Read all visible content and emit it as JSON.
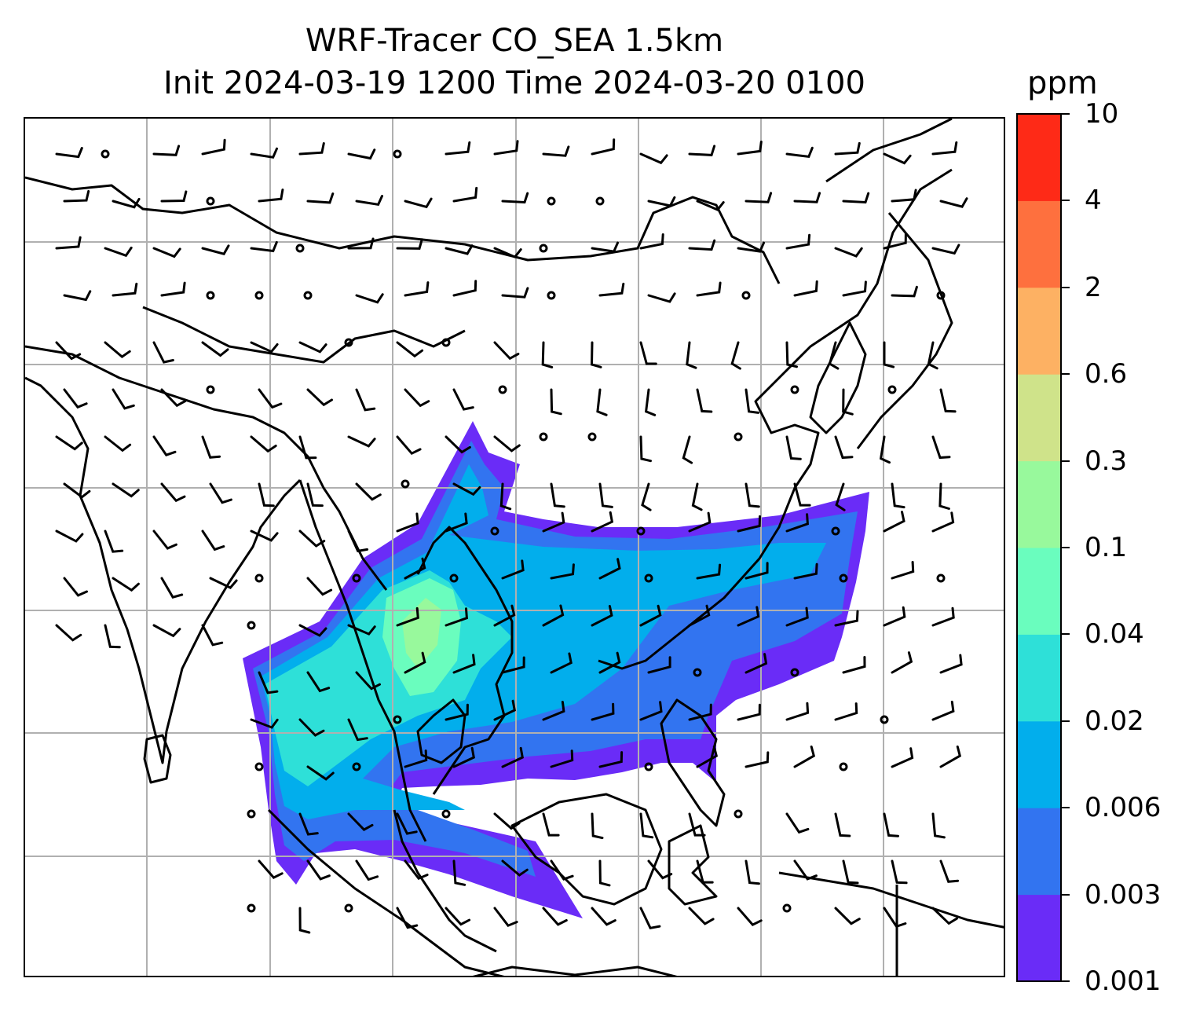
{
  "header": {
    "title_line1": "WRF-Tracer CO_SEA 1.5km",
    "title_line2": "Init 2024-03-19 1200 Time 2024-03-20 0100"
  },
  "colorbar": {
    "unit": "ppm",
    "levels": [
      "0.001",
      "0.003",
      "0.006",
      "0.02",
      "0.04",
      "0.1",
      "0.3",
      "0.6",
      "2",
      "4",
      "10"
    ],
    "colors": [
      "#6a2cf7",
      "#3274f0",
      "#02aeec",
      "#2ee0d8",
      "#6afdbe",
      "#98f99c",
      "#cfe38a",
      "#fdb163",
      "#fe703e",
      "#fe2a17"
    ]
  },
  "map": {
    "gridlines": true,
    "gridline_color": "#b0b0b0",
    "coastline_color": "#000000",
    "wind_barbs": true
  }
}
